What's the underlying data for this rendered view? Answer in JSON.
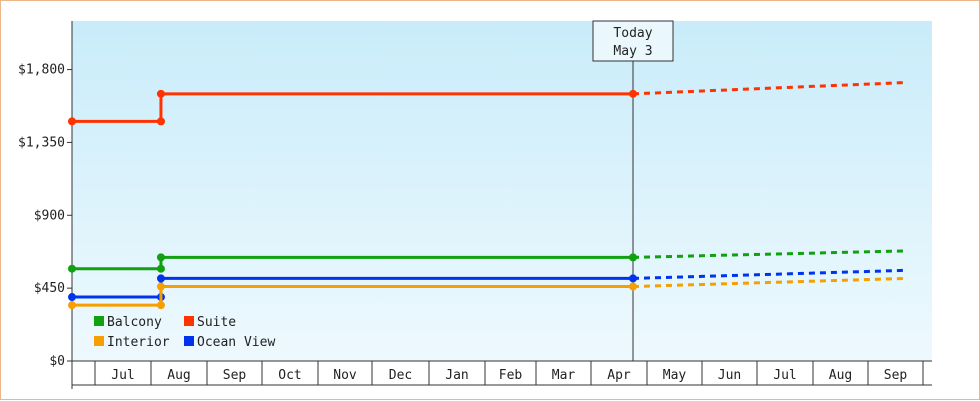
{
  "chart_data": {
    "type": "line",
    "title": "",
    "xlabel": "",
    "ylabel": "",
    "ylim": [
      0,
      2100
    ],
    "y_ticks": [
      0,
      450,
      900,
      1350,
      1800
    ],
    "y_tick_labels": [
      "$0",
      "$450",
      "$900",
      "$1,350",
      "$1,800"
    ],
    "x_tick_labels": [
      "Jul",
      "Aug",
      "Sep",
      "Oct",
      "Nov",
      "Dec",
      "Jan",
      "Feb",
      "Mar",
      "Apr",
      "May",
      "Jun",
      "Jul",
      "Aug",
      "Sep"
    ],
    "today_marker": {
      "line1": "Today",
      "line2": "May 3",
      "x_index": 10.09
    },
    "series": [
      {
        "name": "Suite",
        "color": "#ff3300",
        "actual": [
          [
            0,
            1480
          ],
          [
            1.6,
            1480
          ],
          [
            1.6,
            1650
          ],
          [
            10.09,
            1650
          ]
        ],
        "markers": [
          [
            0,
            1480
          ],
          [
            1.6,
            1480
          ],
          [
            1.6,
            1650
          ],
          [
            10.09,
            1650
          ]
        ],
        "projected": [
          [
            10.09,
            1650
          ],
          [
            15,
            1720
          ]
        ]
      },
      {
        "name": "Balcony",
        "color": "#10a010",
        "actual": [
          [
            0,
            570
          ],
          [
            1.6,
            570
          ],
          [
            1.6,
            640
          ],
          [
            10.09,
            640
          ]
        ],
        "markers": [
          [
            0,
            570
          ],
          [
            1.6,
            570
          ],
          [
            1.6,
            640
          ],
          [
            10.09,
            640
          ]
        ],
        "projected": [
          [
            10.09,
            640
          ],
          [
            15,
            680
          ]
        ]
      },
      {
        "name": "Ocean View",
        "color": "#0033ee",
        "actual": [
          [
            0,
            395
          ],
          [
            1.6,
            395
          ],
          [
            1.6,
            510
          ],
          [
            10.09,
            510
          ]
        ],
        "markers": [
          [
            0,
            395
          ],
          [
            1.6,
            395
          ],
          [
            1.6,
            510
          ],
          [
            10.09,
            510
          ]
        ],
        "projected": [
          [
            10.09,
            510
          ],
          [
            15,
            560
          ]
        ]
      },
      {
        "name": "Interior",
        "color": "#f5a000",
        "actual": [
          [
            0,
            345
          ],
          [
            1.6,
            345
          ],
          [
            1.6,
            460
          ],
          [
            10.09,
            460
          ]
        ],
        "markers": [
          [
            0,
            345
          ],
          [
            1.6,
            345
          ],
          [
            1.6,
            460
          ],
          [
            10.09,
            460
          ]
        ],
        "projected": [
          [
            10.09,
            460
          ],
          [
            15,
            510
          ]
        ]
      }
    ],
    "legend": {
      "placement": "bottom-left",
      "rows": [
        [
          "Balcony",
          "Suite"
        ],
        [
          "Interior",
          "Ocean View"
        ]
      ]
    },
    "grid": false
  }
}
